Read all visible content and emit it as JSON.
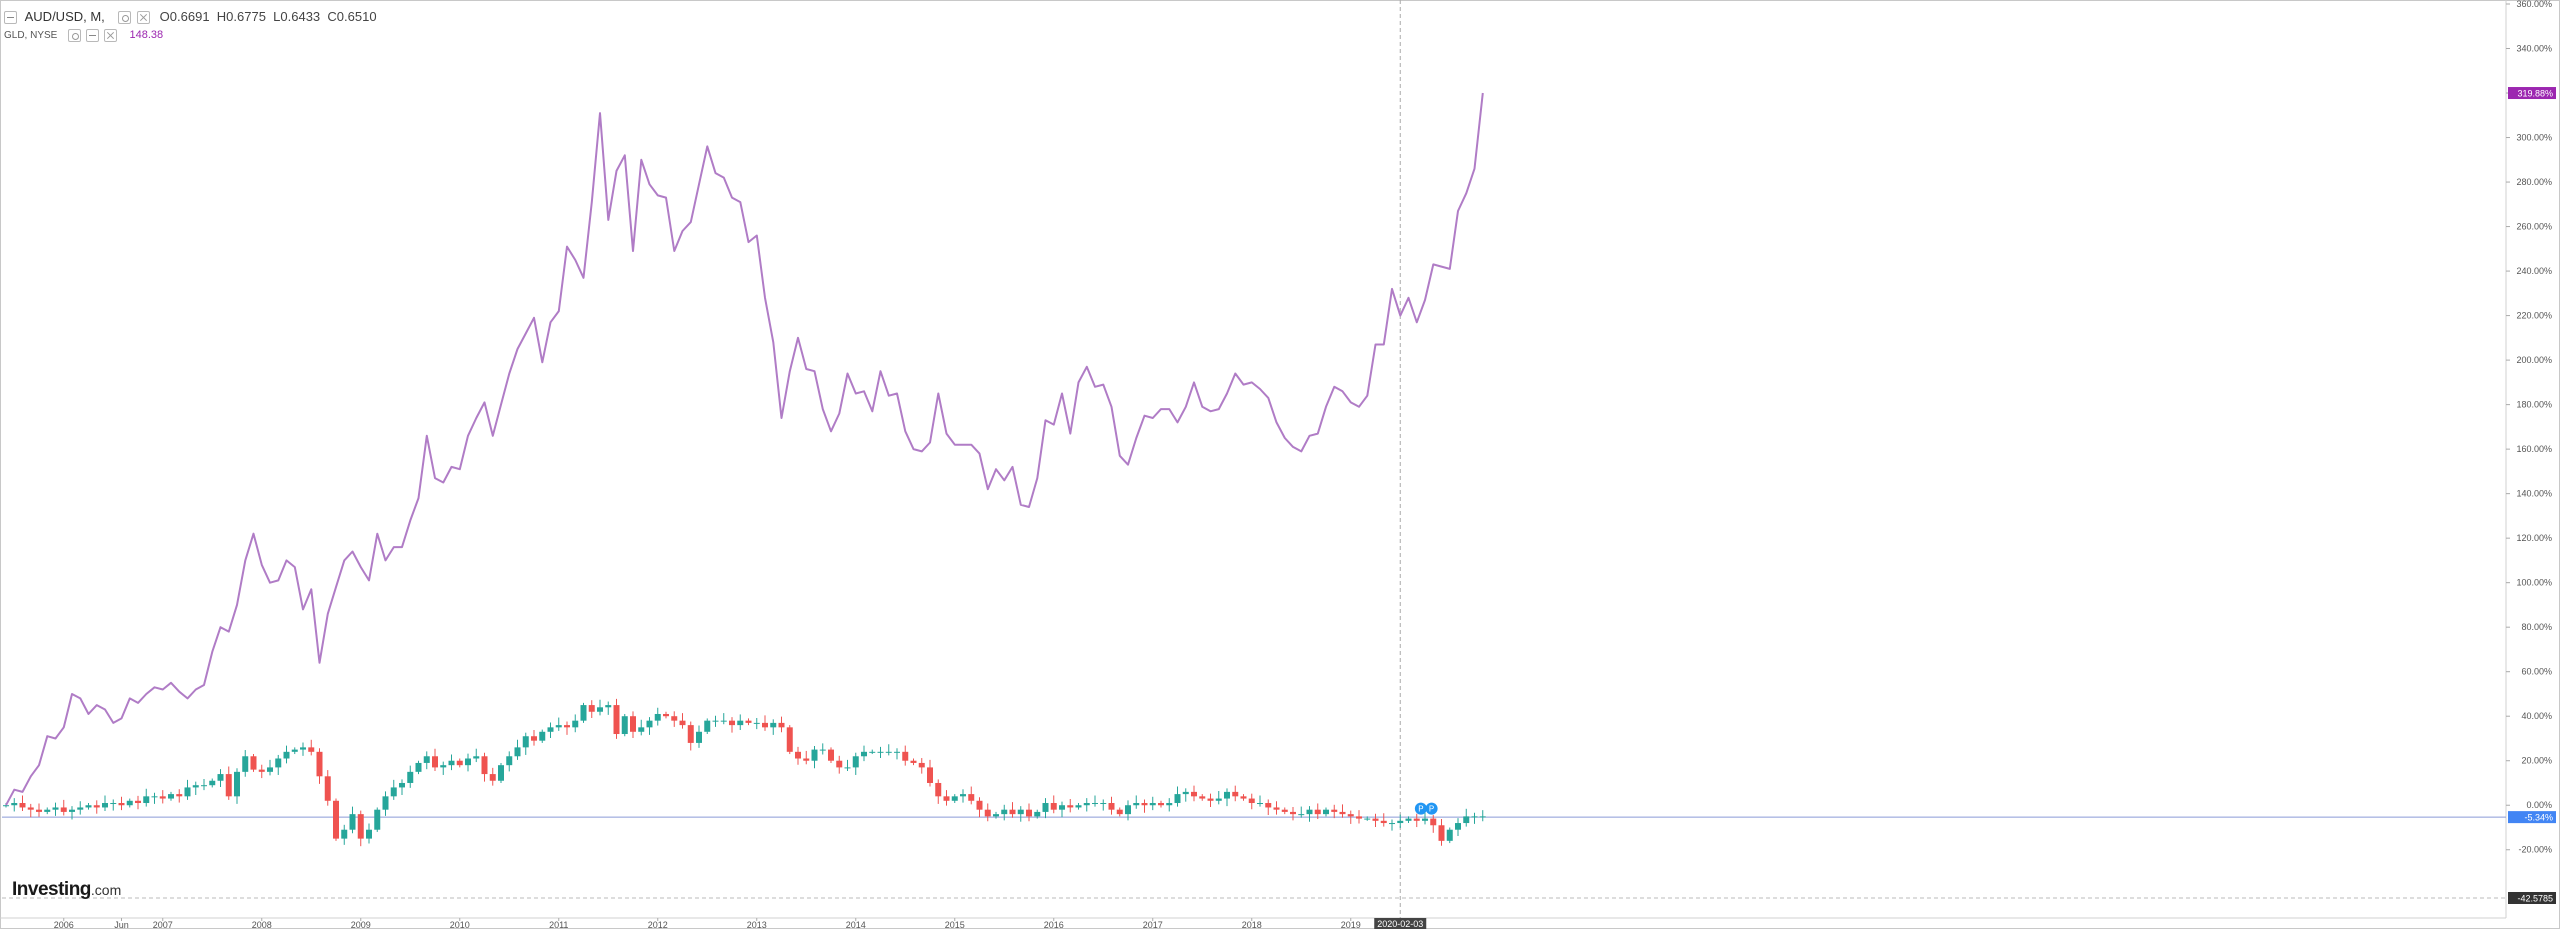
{
  "legend": {
    "symbol": "AUD/USD, M,",
    "open": "O0.6691",
    "high": "H0.6775",
    "low": "L0.6433",
    "close": "C0.6510",
    "overlay_symbol": "GLD, NYSE",
    "overlay_value": "148.38"
  },
  "branding": {
    "logo": "Investing",
    "logo_suffix": ".com"
  },
  "icons": [
    "collapse-icon",
    "settings-icon",
    "close-icon",
    "marker-icon"
  ],
  "colors": {
    "up": "#26a69a",
    "down": "#ef5350",
    "overlay": "#b07cc6",
    "overlay_badge": "#9c27b0",
    "price_badge": "#4285f4",
    "zero_line": "#8a9ad6"
  },
  "chart_data": {
    "type": "candlestick-with-line",
    "y_unit": "percent change",
    "ylim": [
      -42.5785,
      360
    ],
    "y_ticks": [
      -20,
      0,
      20,
      40,
      60,
      80,
      100,
      120,
      140,
      160,
      180,
      200,
      220,
      240,
      260,
      280,
      300,
      320,
      340,
      360
    ],
    "x_labels": [
      "2006",
      "Jun",
      "2007",
      "2008",
      "2009",
      "2010",
      "2011",
      "2012",
      "2013",
      "2014",
      "2015",
      "2016",
      "2017",
      "2018",
      "2019",
      "2020-02-03"
    ],
    "x_start": "2006-01",
    "last_values": {
      "GLD": "319.88%",
      "AUD/USD": "-5.34%",
      "axis_bottom": "-42.5785"
    },
    "series": [
      {
        "name": "GLD, NYSE",
        "kind": "line",
        "values": [
          0,
          7,
          6,
          13,
          18,
          31,
          30,
          35,
          50,
          48,
          41,
          45,
          43,
          37,
          39,
          48,
          46,
          50,
          53,
          52,
          55,
          51,
          48,
          52,
          54,
          69,
          80,
          78,
          90,
          110,
          122,
          108,
          100,
          101,
          110,
          107,
          88,
          97,
          64,
          86,
          98,
          110,
          114,
          107,
          101,
          122,
          110,
          116,
          116,
          128,
          138,
          166,
          147,
          145,
          152,
          151,
          166,
          174,
          181,
          166,
          180,
          194,
          205,
          212,
          219,
          199,
          217,
          222,
          251,
          245,
          237,
          271,
          311,
          263,
          285,
          292,
          249,
          290,
          279,
          274,
          273,
          249,
          258,
          262,
          279,
          296,
          284,
          282,
          273,
          271,
          253,
          256,
          228,
          208,
          174,
          195,
          210,
          196,
          195,
          178,
          168,
          176,
          194,
          185,
          186,
          177,
          195,
          184,
          185,
          168,
          160,
          159,
          163,
          185,
          167,
          162,
          162,
          162,
          158,
          142,
          151,
          146,
          152,
          135,
          134,
          147,
          173,
          171,
          185,
          167,
          190,
          197,
          188,
          189,
          179,
          157,
          153,
          165,
          175,
          174,
          178,
          178,
          172,
          179,
          190,
          179,
          177,
          178,
          185,
          194,
          189,
          190,
          187,
          183,
          172,
          165,
          161,
          159,
          166,
          167,
          179,
          188,
          186,
          181,
          179,
          184,
          207,
          207,
          232,
          220,
          228,
          217,
          227,
          243,
          242,
          241,
          267,
          275,
          286,
          320
        ]
      },
      {
        "name": "AUD/USD",
        "kind": "candlestick",
        "values": [
          0,
          1,
          -1,
          -2,
          -3,
          -2,
          -1,
          -3,
          -2,
          -1,
          0,
          -1,
          1,
          1,
          0,
          2,
          1,
          4,
          4,
          3,
          5,
          4,
          8,
          9,
          9,
          11,
          14,
          4,
          15,
          22,
          16,
          15,
          17,
          21,
          24,
          25,
          26,
          24,
          13,
          2,
          -15,
          -11,
          -4,
          -15,
          -11,
          -2,
          4,
          8,
          10,
          15,
          19,
          22,
          17,
          18,
          20,
          18,
          21,
          22,
          14,
          11,
          18,
          22,
          26,
          31,
          29,
          33,
          35,
          36,
          35,
          38,
          45,
          42,
          44,
          45,
          32,
          40,
          33,
          35,
          38,
          41,
          40,
          38,
          36,
          28,
          33,
          38,
          38,
          38,
          36,
          38,
          37,
          37,
          35,
          37,
          35,
          24,
          21,
          20,
          25,
          25,
          20,
          17,
          17,
          22,
          24,
          24,
          24,
          24,
          24,
          20,
          19,
          17,
          10,
          4,
          2,
          4,
          5,
          2,
          -2,
          -5,
          -4,
          -2,
          -4,
          -2,
          -5,
          -3,
          1,
          -2,
          0,
          -1,
          0,
          1,
          1,
          1,
          -2,
          -4,
          0,
          1,
          0,
          1,
          0,
          1,
          5,
          6,
          4,
          3,
          2,
          3,
          6,
          4,
          3,
          1,
          1,
          -1,
          -2,
          -3,
          -4,
          -4,
          -2,
          -4,
          -2,
          -3,
          -4,
          -5,
          -6,
          -6,
          -7,
          -8,
          -8,
          -7,
          -6,
          -7,
          -6,
          -9,
          -16,
          -11,
          -8,
          -5,
          -5,
          -5
        ]
      }
    ]
  }
}
